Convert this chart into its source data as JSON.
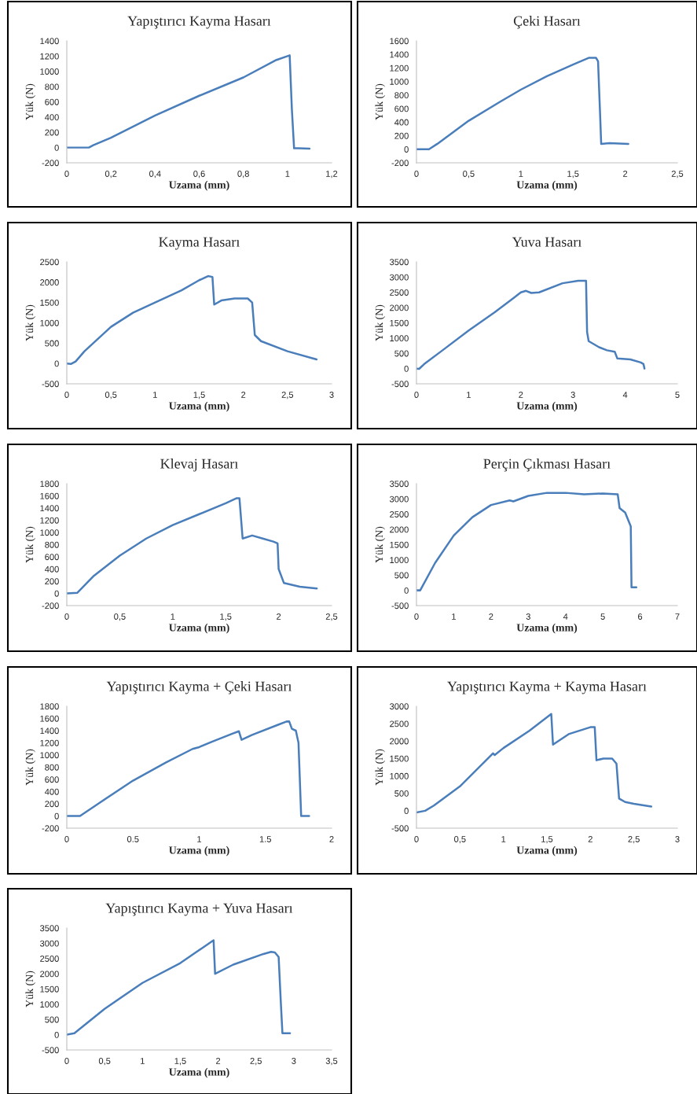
{
  "chart_data": [
    {
      "type": "line",
      "title": "Yapıştırıcı Kayma Hasarı",
      "xlabel": "Uzama (mm)",
      "ylabel": "Yük (N)",
      "xlim": [
        0,
        1.2
      ],
      "xticks": [
        0,
        {
          "value": 0.2,
          "label": "0,2"
        },
        {
          "value": 0.4,
          "label": "0,4"
        },
        {
          "value": 0.6,
          "label": "0,6"
        },
        {
          "value": 0.8,
          "label": "0,8"
        },
        1,
        {
          "value": 1.2,
          "label": "1,2"
        }
      ],
      "ylim": [
        -200,
        1400
      ],
      "yticks": [
        -200,
        0,
        200,
        400,
        600,
        800,
        1000,
        1200,
        1400
      ],
      "grid": false,
      "legend": false,
      "series": [
        {
          "color": "#4a7ebb",
          "x": [
            0,
            0.1,
            0.12,
            0.2,
            0.4,
            0.6,
            0.8,
            0.95,
            1.0,
            1.01,
            1.02,
            1.03,
            1.05,
            1.1
          ],
          "values": [
            0,
            0,
            30,
            130,
            420,
            680,
            920,
            1150,
            1200,
            1210,
            500,
            -10,
            -10,
            -15
          ]
        }
      ]
    },
    {
      "type": "line",
      "title": "Çeki Hasarı",
      "xlabel": "Uzama (mm)",
      "ylabel": "Yük (N)",
      "xlim": [
        0,
        2.5
      ],
      "xticks": [
        0,
        {
          "value": 0.5,
          "label": "0,5"
        },
        1,
        {
          "value": 1.5,
          "label": "1,5"
        },
        2,
        {
          "value": 2.5,
          "label": "2,5"
        }
      ],
      "ylim": [
        -200,
        1600
      ],
      "yticks": [
        -200,
        0,
        200,
        400,
        600,
        800,
        1000,
        1200,
        1400,
        1600
      ],
      "grid": false,
      "legend": false,
      "series": [
        {
          "color": "#4a7ebb",
          "x": [
            0,
            0.12,
            0.2,
            0.5,
            0.8,
            1.0,
            1.25,
            1.5,
            1.65,
            1.72,
            1.74,
            1.76,
            1.77,
            1.85,
            2.03
          ],
          "values": [
            0,
            0,
            80,
            420,
            700,
            880,
            1080,
            1250,
            1350,
            1350,
            1300,
            500,
            80,
            90,
            80
          ]
        }
      ]
    },
    {
      "type": "line",
      "title": "Kayma Hasarı",
      "xlabel": "Uzama (mm)",
      "ylabel": "Yük (N)",
      "xlim": [
        0,
        3
      ],
      "xticks": [
        0,
        {
          "value": 0.5,
          "label": "0,5"
        },
        1,
        {
          "value": 1.5,
          "label": "1,5"
        },
        2,
        {
          "value": 2.5,
          "label": "2,5"
        },
        3
      ],
      "ylim": [
        -500,
        2500
      ],
      "yticks": [
        -500,
        0,
        500,
        1000,
        1500,
        2000,
        2500
      ],
      "grid": false,
      "legend": false,
      "series": [
        {
          "color": "#4a7ebb",
          "x": [
            0,
            0.05,
            0.1,
            0.2,
            0.5,
            0.75,
            1.0,
            1.3,
            1.5,
            1.6,
            1.65,
            1.67,
            1.75,
            1.9,
            2.05,
            2.1,
            2.13,
            2.2,
            2.5,
            2.83
          ],
          "values": [
            0,
            -10,
            50,
            300,
            900,
            1250,
            1500,
            1800,
            2050,
            2150,
            2130,
            1450,
            1550,
            1600,
            1600,
            1500,
            700,
            550,
            300,
            100
          ]
        }
      ]
    },
    {
      "type": "line",
      "title": "Yuva Hasarı",
      "xlabel": "Uzama (mm)",
      "ylabel": "Yük (N)",
      "xlim": [
        0,
        5
      ],
      "xticks": [
        0,
        1,
        2,
        3,
        4,
        5
      ],
      "ylim": [
        -500,
        3500
      ],
      "yticks": [
        -500,
        0,
        500,
        1000,
        1500,
        2000,
        2500,
        3000,
        3500
      ],
      "grid": false,
      "legend": false,
      "series": [
        {
          "color": "#4a7ebb",
          "x": [
            0,
            0.05,
            0.15,
            0.5,
            1.0,
            1.5,
            1.85,
            2.0,
            2.1,
            2.2,
            2.35,
            2.8,
            3.1,
            3.25,
            3.27,
            3.3,
            3.5,
            3.65,
            3.8,
            3.85,
            4.1,
            4.3,
            4.35,
            4.37
          ],
          "values": [
            0,
            -10,
            150,
            600,
            1250,
            1850,
            2300,
            2500,
            2550,
            2480,
            2500,
            2800,
            2880,
            2880,
            1200,
            900,
            700,
            600,
            550,
            330,
            300,
            200,
            150,
            0
          ]
        }
      ]
    },
    {
      "type": "line",
      "title": "Klevaj Hasarı",
      "xlabel": "Uzama (mm)",
      "ylabel": "Yük (N)",
      "xlim": [
        0,
        2.5
      ],
      "xticks": [
        0,
        {
          "value": 0.5,
          "label": "0,5"
        },
        1,
        {
          "value": 1.5,
          "label": "1,5"
        },
        2,
        {
          "value": 2.5,
          "label": "2,5"
        }
      ],
      "ylim": [
        -200,
        1800
      ],
      "yticks": [
        -200,
        0,
        200,
        400,
        600,
        800,
        1000,
        1200,
        1400,
        1600,
        1800
      ],
      "grid": false,
      "legend": false,
      "series": [
        {
          "color": "#4a7ebb",
          "x": [
            0,
            0.1,
            0.25,
            0.5,
            0.75,
            1.0,
            1.25,
            1.5,
            1.6,
            1.63,
            1.66,
            1.75,
            1.85,
            1.95,
            1.99,
            2.0,
            2.05,
            2.2,
            2.36
          ],
          "values": [
            0,
            10,
            280,
            620,
            900,
            1120,
            1300,
            1480,
            1560,
            1560,
            900,
            950,
            900,
            850,
            820,
            400,
            170,
            110,
            80
          ]
        }
      ]
    },
    {
      "type": "line",
      "title": "Perçin Çıkması Hasarı",
      "xlabel": "Uzama (mm)",
      "ylabel": "Yük (N)",
      "xlim": [
        0,
        7
      ],
      "xticks": [
        0,
        1,
        2,
        3,
        4,
        5,
        6,
        7
      ],
      "ylim": [
        -500,
        3500
      ],
      "yticks": [
        -500,
        0,
        500,
        1000,
        1500,
        2000,
        2500,
        3000,
        3500
      ],
      "grid": false,
      "legend": false,
      "series": [
        {
          "color": "#4a7ebb",
          "x": [
            0,
            0.1,
            0.5,
            1.0,
            1.5,
            2.0,
            2.5,
            2.6,
            3.0,
            3.5,
            4.0,
            4.5,
            5.0,
            5.4,
            5.45,
            5.6,
            5.75,
            5.77,
            5.9
          ],
          "values": [
            0,
            0,
            900,
            1800,
            2400,
            2800,
            2950,
            2920,
            3100,
            3200,
            3200,
            3150,
            3180,
            3150,
            2700,
            2550,
            2100,
            100,
            100
          ]
        }
      ]
    },
    {
      "type": "line",
      "title": "Yapıştırıcı Kayma + Çeki Hasarı",
      "xlabel": "Uzama (mm)",
      "ylabel": "Yük (N)",
      "xlim": [
        0,
        2
      ],
      "xticks": [
        0,
        0.5,
        1,
        1.5,
        2
      ],
      "ylim": [
        -200,
        1800
      ],
      "yticks": [
        -200,
        0,
        200,
        400,
        600,
        800,
        1000,
        1200,
        1400,
        1600,
        1800
      ],
      "grid": false,
      "legend": false,
      "series": [
        {
          "color": "#4a7ebb",
          "x": [
            0,
            0.1,
            0.25,
            0.5,
            0.75,
            0.95,
            1.0,
            1.1,
            1.25,
            1.3,
            1.32,
            1.4,
            1.6,
            1.66,
            1.68,
            1.7,
            1.73,
            1.75,
            1.77,
            1.83
          ],
          "values": [
            0,
            0,
            220,
            580,
            880,
            1100,
            1130,
            1220,
            1350,
            1390,
            1250,
            1330,
            1500,
            1550,
            1550,
            1430,
            1400,
            1200,
            0,
            0
          ]
        }
      ]
    },
    {
      "type": "line",
      "title": "Yapıştırıcı Kayma + Kayma Hasarı",
      "xlabel": "Uzama (mm)",
      "ylabel": "Yük (N)",
      "xlim": [
        0,
        3
      ],
      "xticks": [
        0,
        {
          "value": 0.5,
          "label": "0,5"
        },
        1,
        {
          "value": 1.5,
          "label": "1,5"
        },
        2,
        {
          "value": 2.5,
          "label": "2,5"
        },
        3
      ],
      "ylim": [
        -500,
        3000
      ],
      "yticks": [
        -500,
        0,
        500,
        1000,
        1500,
        2000,
        2500,
        3000
      ],
      "grid": false,
      "legend": false,
      "series": [
        {
          "color": "#4a7ebb",
          "x": [
            0,
            0.1,
            0.2,
            0.5,
            0.88,
            0.9,
            1.0,
            1.3,
            1.55,
            1.57,
            1.75,
            2.0,
            2.05,
            2.07,
            2.15,
            2.25,
            2.3,
            2.33,
            2.4,
            2.5,
            2.7
          ],
          "values": [
            -50,
            0,
            150,
            700,
            1650,
            1600,
            1800,
            2300,
            2780,
            1900,
            2200,
            2400,
            2400,
            1450,
            1500,
            1500,
            1350,
            350,
            250,
            200,
            120
          ]
        }
      ]
    },
    {
      "type": "line",
      "title": "Yapıştırıcı Kayma + Yuva Hasarı",
      "xlabel": "Uzama (mm)",
      "ylabel": "Yük (N)",
      "xlim": [
        0,
        3.5
      ],
      "xticks": [
        0,
        {
          "value": 0.5,
          "label": "0,5"
        },
        1,
        {
          "value": 1.5,
          "label": "1,5"
        },
        2,
        {
          "value": 2.5,
          "label": "2,5"
        },
        3,
        {
          "value": 3.5,
          "label": "3,5"
        }
      ],
      "ylim": [
        -500,
        3500
      ],
      "yticks": [
        -500,
        0,
        500,
        1000,
        1500,
        2000,
        2500,
        3000,
        3500
      ],
      "grid": false,
      "legend": false,
      "series": [
        {
          "color": "#4a7ebb",
          "x": [
            0,
            0.1,
            0.5,
            1.0,
            1.5,
            1.94,
            1.96,
            2.2,
            2.6,
            2.7,
            2.75,
            2.8,
            2.83,
            2.85,
            2.95
          ],
          "values": [
            0,
            50,
            850,
            1700,
            2350,
            3100,
            2000,
            2300,
            2650,
            2720,
            2700,
            2550,
            1000,
            50,
            50
          ]
        }
      ]
    }
  ]
}
